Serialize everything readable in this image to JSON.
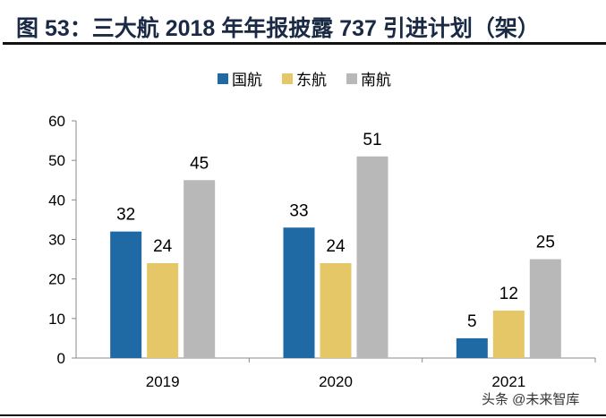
{
  "title": "图 53：三大航 2018 年年报披露 737 引进计划（架）",
  "watermark": "头条 @未来智库",
  "chart_data": {
    "type": "bar",
    "title": "图 53：三大航 2018 年年报披露 737 引进计划（架）",
    "categories": [
      "2019",
      "2020",
      "2021"
    ],
    "series": [
      {
        "name": "国航",
        "color": "#1f6aa5",
        "values": [
          32,
          33,
          5
        ]
      },
      {
        "name": "东航",
        "color": "#e5c767",
        "values": [
          24,
          24,
          12
        ]
      },
      {
        "name": "南航",
        "color": "#b8b8b8",
        "values": [
          45,
          51,
          25
        ]
      }
    ],
    "ylim": [
      0,
      60
    ],
    "yticks": [
      0,
      10,
      20,
      30,
      40,
      50,
      60
    ],
    "grid": false,
    "legend": "top-center",
    "data_labels": true
  }
}
